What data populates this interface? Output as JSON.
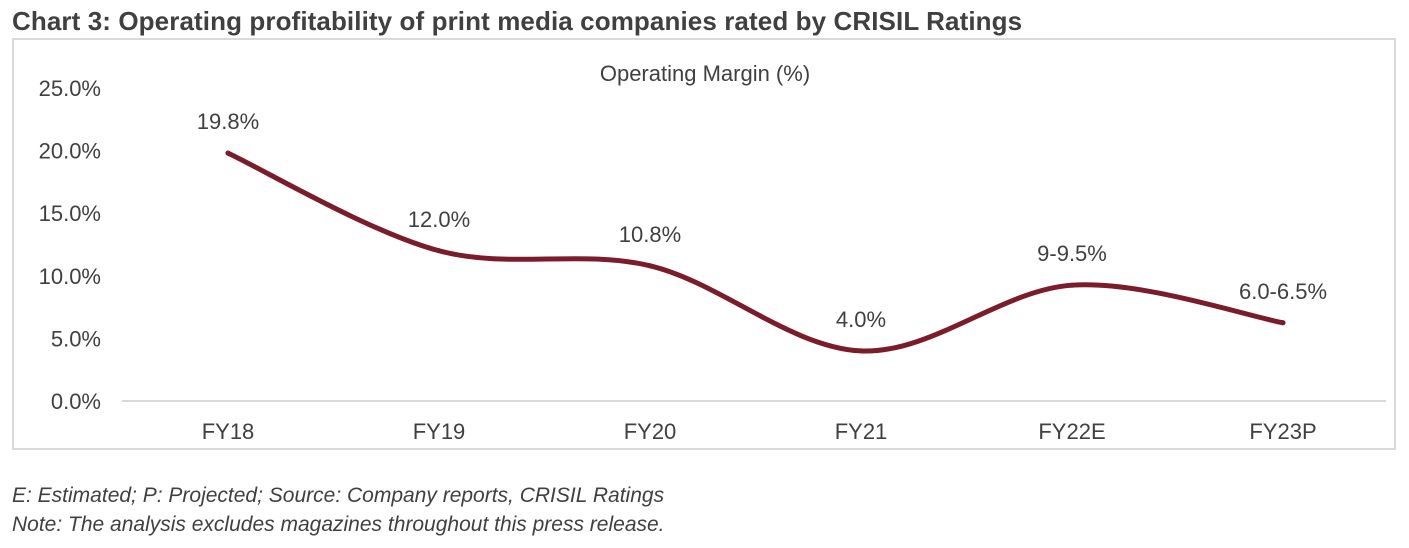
{
  "heading": "Chart 3: Operating profitability of print media companies rated by CRISIL Ratings",
  "footnotes": [
    "E: Estimated; P: Projected; Source: Company reports, CRISIL Ratings",
    "Note: The analysis excludes magazines throughout this press release."
  ],
  "chart_data": {
    "type": "line",
    "title": "Operating Margin (%)",
    "categories": [
      "FY18",
      "FY19",
      "FY20",
      "FY21",
      "FY22E",
      "FY23P"
    ],
    "values": [
      19.8,
      12.0,
      10.8,
      4.0,
      9.25,
      6.25
    ],
    "data_labels": [
      "19.8%",
      "12.0%",
      "10.8%",
      "4.0%",
      "9-9.5%",
      "6.0-6.5%"
    ],
    "y_ticks": [
      "0.0%",
      "5.0%",
      "10.0%",
      "15.0%",
      "20.0%",
      "25.0%"
    ],
    "ylim": [
      0,
      25
    ],
    "grid": false,
    "line_color": "#7b1c2a",
    "smooth": true
  }
}
